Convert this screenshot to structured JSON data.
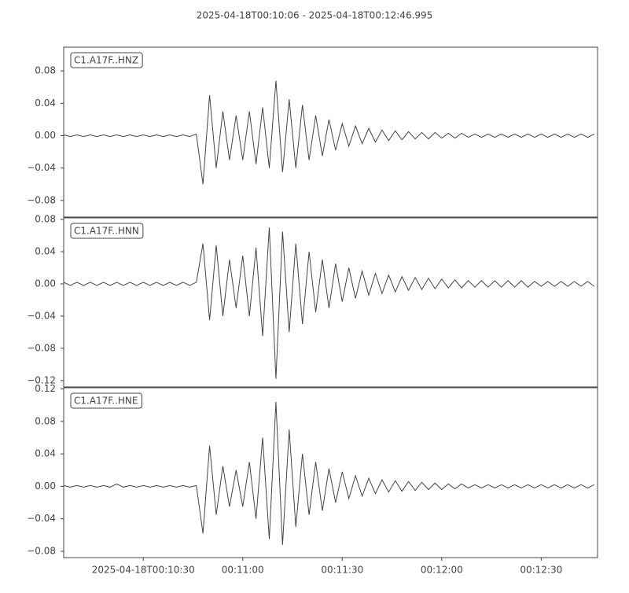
{
  "title": "2025-04-18T00:10:06  -  2025-04-18T00:12:46.995",
  "chart_data": [
    {
      "type": "line",
      "label": "C1.A17F..HNZ",
      "color": "#444444",
      "xlim": [
        0,
        160.995
      ],
      "ylim": [
        -0.1005,
        0.1093
      ],
      "yticks": [
        {
          "value": -0.08,
          "label": "−0.08"
        },
        {
          "value": -0.04,
          "label": "−0.04"
        },
        {
          "value": 0,
          "label": "0.00"
        },
        0.04,
        0.08
      ],
      "x": [
        0,
        2,
        4,
        6,
        8,
        10,
        12,
        14,
        16,
        18,
        20,
        22,
        24,
        26,
        28,
        30,
        32,
        34,
        36,
        38,
        40,
        42,
        44,
        46,
        48,
        50,
        52,
        54,
        56,
        58,
        60,
        62,
        64,
        66,
        68,
        70,
        72,
        74,
        76,
        78,
        80,
        82,
        84,
        86,
        88,
        90,
        92,
        94,
        96,
        98,
        100,
        102,
        104,
        106,
        108,
        110,
        112,
        114,
        116,
        118,
        120,
        122,
        124,
        126,
        128,
        130,
        132,
        134,
        136,
        138,
        140,
        142,
        144,
        146,
        148,
        150,
        152,
        154,
        156,
        158,
        160
      ],
      "values": [
        0.001,
        -0.001,
        0.001,
        -0.001,
        0.001,
        -0.001,
        0.001,
        -0.001,
        0.001,
        -0.001,
        0.001,
        -0.001,
        0.001,
        -0.001,
        0.001,
        -0.001,
        0.001,
        -0.001,
        0.001,
        -0.001,
        0.002,
        -0.06,
        0.05,
        -0.04,
        0.03,
        -0.03,
        0.025,
        -0.03,
        0.03,
        -0.035,
        0.035,
        -0.04,
        0.068,
        -0.045,
        0.045,
        -0.04,
        0.038,
        -0.03,
        0.025,
        -0.025,
        0.02,
        -0.018,
        0.015,
        -0.013,
        0.012,
        -0.01,
        0.009,
        -0.008,
        0.007,
        -0.006,
        0.006,
        -0.005,
        0.005,
        -0.004,
        0.004,
        -0.004,
        0.004,
        -0.003,
        0.003,
        -0.003,
        0.003,
        -0.002,
        0.002,
        -0.002,
        0.002,
        -0.002,
        0.002,
        -0.002,
        0.002,
        -0.002,
        0.002,
        -0.002,
        0.002,
        -0.002,
        0.002,
        -0.002,
        0.002,
        -0.002,
        0.002,
        -0.002,
        0.002
      ]
    },
    {
      "type": "line",
      "label": "C1.A17F..HNN",
      "color": "#444444",
      "xlim": [
        0,
        160.995
      ],
      "ylim": [
        -0.128,
        0.082
      ],
      "yticks": [
        {
          "value": -0.12,
          "label": "−0.12"
        },
        {
          "value": -0.08,
          "label": "−0.08"
        },
        {
          "value": -0.04,
          "label": "−0.04"
        },
        {
          "value": 0,
          "label": "0.00"
        },
        0.04,
        0.08
      ],
      "x": [
        0,
        2,
        4,
        6,
        8,
        10,
        12,
        14,
        16,
        18,
        20,
        22,
        24,
        26,
        28,
        30,
        32,
        34,
        36,
        38,
        40,
        42,
        44,
        46,
        48,
        50,
        52,
        54,
        56,
        58,
        60,
        62,
        64,
        66,
        68,
        70,
        72,
        74,
        76,
        78,
        80,
        82,
        84,
        86,
        88,
        90,
        92,
        94,
        96,
        98,
        100,
        102,
        104,
        106,
        108,
        110,
        112,
        114,
        116,
        118,
        120,
        122,
        124,
        126,
        128,
        130,
        132,
        134,
        136,
        138,
        140,
        142,
        144,
        146,
        148,
        150,
        152,
        154,
        156,
        158,
        160
      ],
      "values": [
        0.002,
        -0.002,
        0.002,
        -0.002,
        0.002,
        -0.002,
        0.002,
        -0.002,
        0.002,
        -0.002,
        0.002,
        -0.002,
        0.002,
        -0.002,
        0.002,
        -0.002,
        0.002,
        -0.002,
        0.002,
        -0.002,
        0.002,
        0.05,
        -0.045,
        0.048,
        -0.04,
        0.03,
        -0.03,
        0.035,
        -0.04,
        0.045,
        -0.065,
        0.07,
        -0.118,
        0.065,
        -0.06,
        0.05,
        -0.05,
        0.04,
        -0.035,
        0.03,
        -0.03,
        0.025,
        -0.022,
        0.02,
        -0.018,
        0.016,
        -0.014,
        0.013,
        -0.012,
        0.011,
        -0.01,
        0.009,
        -0.008,
        0.008,
        -0.007,
        0.007,
        -0.006,
        0.006,
        -0.005,
        0.005,
        -0.005,
        0.004,
        -0.004,
        0.004,
        -0.004,
        0.004,
        -0.004,
        0.004,
        -0.004,
        0.004,
        -0.004,
        0.003,
        -0.003,
        0.003,
        -0.003,
        0.003,
        -0.003,
        0.003,
        -0.003,
        0.003,
        -0.003
      ]
    },
    {
      "type": "line",
      "label": "C1.A17F..HNE",
      "color": "#444444",
      "xlim": [
        0,
        160.995
      ],
      "ylim": [
        -0.0878,
        0.1215
      ],
      "yticks": [
        {
          "value": -0.08,
          "label": "−0.08"
        },
        {
          "value": -0.04,
          "label": "−0.04"
        },
        {
          "value": 0,
          "label": "0.00"
        },
        0.04,
        0.08,
        0.12
      ],
      "xticks": [
        {
          "value": 24,
          "label": "2025-04-18T00:10:30"
        },
        {
          "value": 54,
          "label": "00:11:00"
        },
        {
          "value": 84,
          "label": "00:11:30"
        },
        {
          "value": 114,
          "label": "00:12:00"
        },
        {
          "value": 144,
          "label": "00:12:30"
        }
      ],
      "x": [
        0,
        2,
        4,
        6,
        8,
        10,
        12,
        14,
        16,
        18,
        20,
        22,
        24,
        26,
        28,
        30,
        32,
        34,
        36,
        38,
        40,
        42,
        44,
        46,
        48,
        50,
        52,
        54,
        56,
        58,
        60,
        62,
        64,
        66,
        68,
        70,
        72,
        74,
        76,
        78,
        80,
        82,
        84,
        86,
        88,
        90,
        92,
        94,
        96,
        98,
        100,
        102,
        104,
        106,
        108,
        110,
        112,
        114,
        116,
        118,
        120,
        122,
        124,
        126,
        128,
        130,
        132,
        134,
        136,
        138,
        140,
        142,
        144,
        146,
        148,
        150,
        152,
        154,
        156,
        158,
        160
      ],
      "values": [
        0.001,
        -0.001,
        0.001,
        -0.001,
        0.001,
        -0.001,
        0.001,
        -0.001,
        0.003,
        -0.001,
        0.001,
        -0.001,
        0.001,
        -0.001,
        0.001,
        -0.001,
        0.001,
        -0.001,
        0.001,
        -0.001,
        0.001,
        -0.058,
        0.05,
        -0.035,
        0.025,
        -0.025,
        0.02,
        -0.025,
        0.03,
        -0.04,
        0.06,
        -0.065,
        0.104,
        -0.072,
        0.07,
        -0.05,
        0.04,
        -0.035,
        0.03,
        -0.03,
        0.022,
        -0.02,
        0.018,
        -0.015,
        0.013,
        -0.012,
        0.01,
        -0.009,
        0.008,
        -0.007,
        0.007,
        -0.006,
        0.006,
        -0.005,
        0.005,
        -0.004,
        0.004,
        -0.004,
        0.003,
        -0.003,
        0.003,
        -0.002,
        0.002,
        -0.002,
        0.002,
        -0.002,
        0.002,
        -0.002,
        0.002,
        -0.002,
        0.002,
        -0.002,
        0.002,
        -0.002,
        0.002,
        -0.002,
        0.002,
        -0.002,
        0.002,
        -0.002,
        0.002
      ]
    }
  ]
}
